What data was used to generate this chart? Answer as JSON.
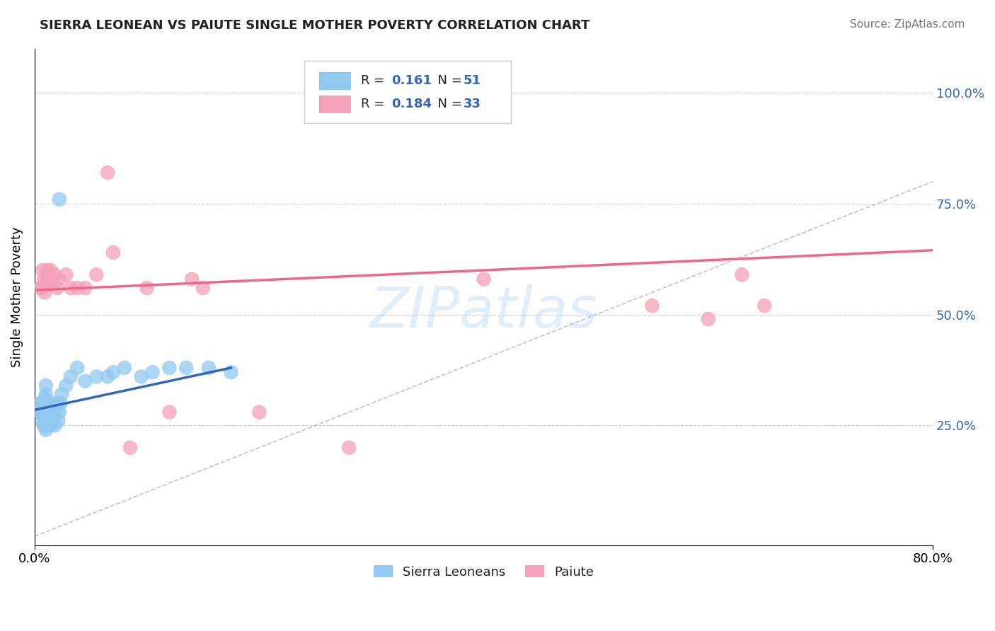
{
  "title": "SIERRA LEONEAN VS PAIUTE SINGLE MOTHER POVERTY CORRELATION CHART",
  "source": "Source: ZipAtlas.com",
  "ylabel": "Single Mother Poverty",
  "xlim": [
    0.0,
    0.8
  ],
  "ylim": [
    -0.02,
    1.1
  ],
  "yticks": [
    0.0,
    0.25,
    0.5,
    0.75,
    1.0
  ],
  "ytick_labels": [
    "",
    "25.0%",
    "50.0%",
    "75.0%",
    "100.0%"
  ],
  "color_blue": "#90C8F0",
  "color_pink": "#F4A0B8",
  "color_blue_line": "#3366BB",
  "color_pink_line": "#EE6688",
  "color_diag_line": "#99AADD",
  "background": "#FFFFFF",
  "sierra_x": [
    0.005,
    0.005,
    0.007,
    0.007,
    0.007,
    0.008,
    0.008,
    0.009,
    0.009,
    0.009,
    0.01,
    0.01,
    0.01,
    0.01,
    0.01,
    0.01,
    0.011,
    0.011,
    0.012,
    0.012,
    0.013,
    0.013,
    0.014,
    0.014,
    0.015,
    0.015,
    0.015,
    0.016,
    0.017,
    0.018,
    0.019,
    0.02,
    0.021,
    0.022,
    0.023,
    0.024,
    0.028,
    0.032,
    0.038,
    0.045,
    0.055,
    0.065,
    0.07,
    0.08,
    0.095,
    0.105,
    0.12,
    0.135,
    0.155,
    0.175,
    0.022
  ],
  "sierra_y": [
    0.28,
    0.3,
    0.26,
    0.28,
    0.3,
    0.25,
    0.27,
    0.29,
    0.31,
    0.26,
    0.24,
    0.26,
    0.28,
    0.3,
    0.32,
    0.34,
    0.25,
    0.27,
    0.26,
    0.28,
    0.27,
    0.29,
    0.25,
    0.28,
    0.3,
    0.26,
    0.28,
    0.27,
    0.29,
    0.25,
    0.28,
    0.3,
    0.26,
    0.28,
    0.3,
    0.32,
    0.34,
    0.36,
    0.38,
    0.35,
    0.36,
    0.36,
    0.37,
    0.38,
    0.36,
    0.37,
    0.38,
    0.38,
    0.38,
    0.37,
    0.76
  ],
  "paiute_x": [
    0.005,
    0.006,
    0.007,
    0.008,
    0.009,
    0.01,
    0.011,
    0.012,
    0.013,
    0.014,
    0.015,
    0.016,
    0.018,
    0.02,
    0.022,
    0.028,
    0.032,
    0.038,
    0.045,
    0.055,
    0.065,
    0.07,
    0.085,
    0.1,
    0.12,
    0.14,
    0.15,
    0.2,
    0.28,
    0.4,
    0.55,
    0.6,
    0.63,
    0.65
  ],
  "paiute_y": [
    0.56,
    0.56,
    0.6,
    0.58,
    0.55,
    0.57,
    0.6,
    0.58,
    0.57,
    0.6,
    0.57,
    0.57,
    0.59,
    0.56,
    0.58,
    0.59,
    0.56,
    0.56,
    0.56,
    0.59,
    0.82,
    0.64,
    0.2,
    0.56,
    0.28,
    0.58,
    0.56,
    0.28,
    0.2,
    0.58,
    0.52,
    0.49,
    0.59,
    0.52
  ],
  "sl_line_x": [
    0.0,
    0.175
  ],
  "sl_line_y": [
    0.285,
    0.38
  ],
  "paiute_line_x": [
    0.0,
    0.8
  ],
  "paiute_line_y": [
    0.555,
    0.645
  ],
  "diag_line_x": [
    0.0,
    0.8
  ],
  "diag_line_y": [
    0.0,
    0.8
  ]
}
